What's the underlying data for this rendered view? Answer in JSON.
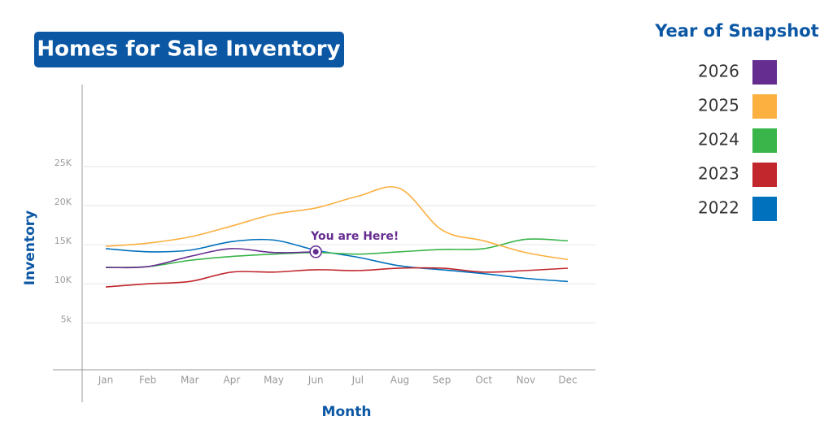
{
  "chart_data": {
    "type": "line",
    "title": "Homes for Sale Inventory",
    "xlabel": "Month",
    "ylabel": "Inventory",
    "legend_title": "Year of Snapshot",
    "annotation": "You are Here!",
    "categories": [
      "Jan",
      "Feb",
      "Mar",
      "Apr",
      "May",
      "Jun",
      "Jul",
      "Aug",
      "Sep",
      "Oct",
      "Nov",
      "Dec"
    ],
    "ylim": [
      -1000,
      35500
    ],
    "yticks": [
      {
        "value": 5000,
        "label": "5k"
      },
      {
        "value": 10000,
        "label": "10K"
      },
      {
        "value": 15000,
        "label": "15K"
      },
      {
        "value": 20000,
        "label": "20K"
      },
      {
        "value": 25000,
        "label": "25K"
      }
    ],
    "grid": true,
    "legend": "right",
    "series": [
      {
        "name": "2026",
        "color": "#662d91",
        "values": [
          12100,
          12200,
          13500,
          14500,
          14000,
          14100,
          null,
          null,
          null,
          null,
          null,
          null
        ]
      },
      {
        "name": "2025",
        "color": "#fbb040",
        "values": [
          14800,
          15200,
          16000,
          17400,
          18900,
          19700,
          21200,
          22200,
          16900,
          15500,
          14000,
          13100
        ]
      },
      {
        "name": "2024",
        "color": "#39b54a",
        "values": [
          12100,
          12200,
          13000,
          13500,
          13800,
          14000,
          13800,
          14100,
          14400,
          14500,
          15700,
          15500
        ]
      },
      {
        "name": "2023",
        "color": "#c1272d",
        "values": [
          9600,
          10000,
          10300,
          11500,
          11500,
          11800,
          11700,
          12000,
          12000,
          11500,
          11700,
          12000
        ]
      },
      {
        "name": "2022",
        "color": "#0071bc",
        "values": [
          14500,
          14100,
          14300,
          15400,
          15600,
          14300,
          13400,
          12300,
          11800,
          11300,
          10700,
          10300
        ]
      }
    ]
  }
}
